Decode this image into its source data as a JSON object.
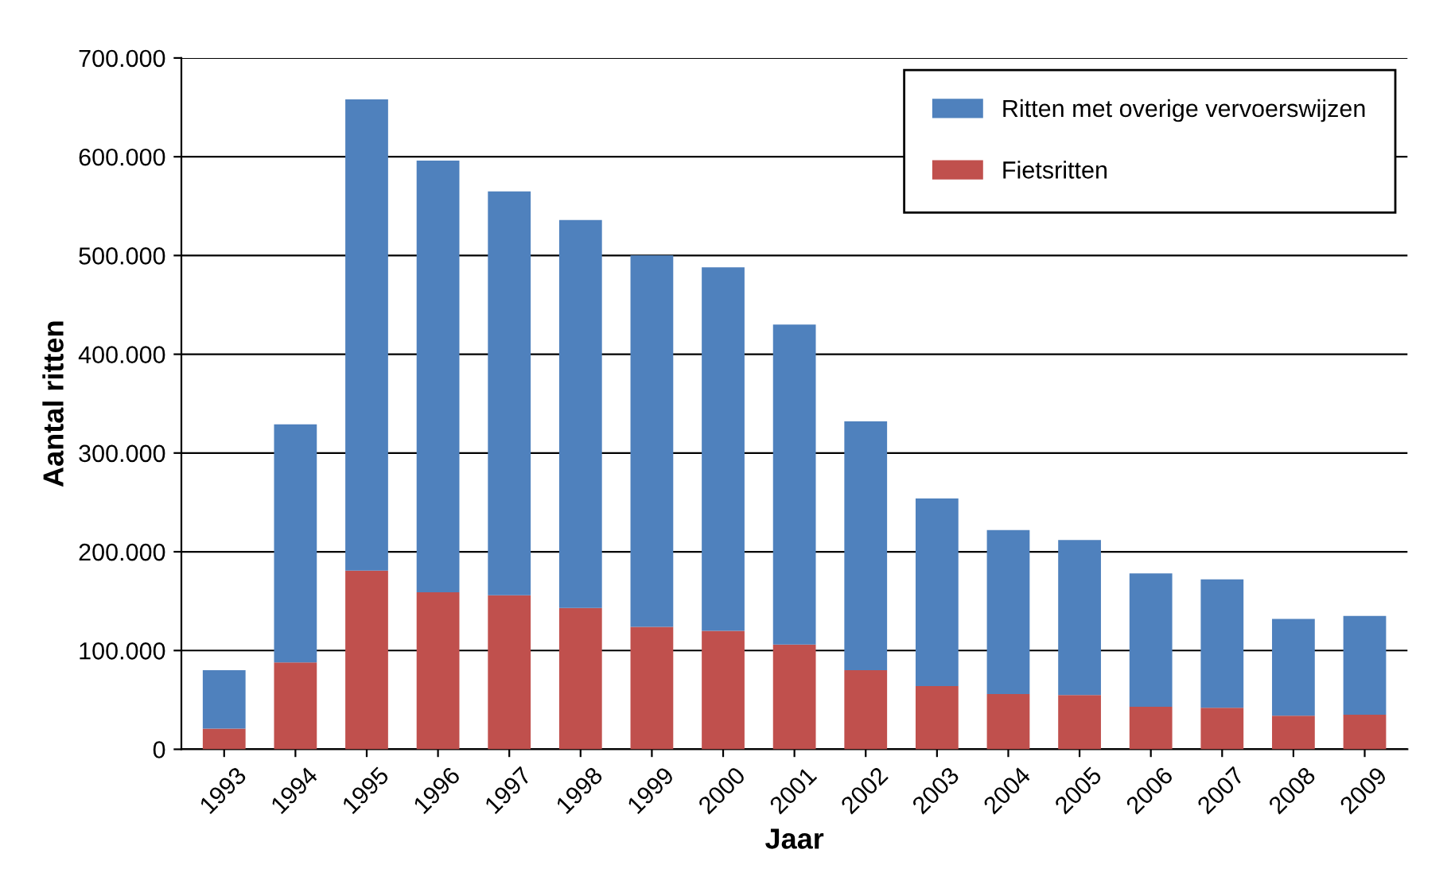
{
  "chart_data": {
    "type": "bar",
    "stacked": true,
    "xlabel": "Jaar",
    "ylabel": "Aantal ritten",
    "categories": [
      "1993",
      "1994",
      "1995",
      "1996",
      "1997",
      "1998",
      "1999",
      "2000",
      "2001",
      "2002",
      "2003",
      "2004",
      "2005",
      "2006",
      "2007",
      "2008",
      "2009"
    ],
    "series": [
      {
        "name": "Fietsritten",
        "color": "#c0504d",
        "values": [
          21000,
          88000,
          181000,
          159000,
          156000,
          143000,
          124000,
          120000,
          106000,
          80000,
          64000,
          56000,
          55000,
          43000,
          42000,
          34000,
          35000
        ]
      },
      {
        "name": "Ritten met overige vervoerswijzen",
        "color": "#4f81bd",
        "values": [
          59000,
          241000,
          477000,
          437000,
          409000,
          393000,
          376000,
          368000,
          324000,
          252000,
          190000,
          166000,
          157000,
          135000,
          130000,
          98000,
          100000
        ]
      }
    ],
    "ylim": [
      0,
      700000
    ],
    "yticks": [
      0,
      {
        "value": 100000,
        "label": "100.000"
      },
      {
        "value": 200000,
        "label": "200.000"
      },
      {
        "value": 300000,
        "label": "300.000"
      },
      {
        "value": 400000,
        "label": "400.000"
      },
      {
        "value": 500000,
        "label": "500.000"
      },
      {
        "value": 600000,
        "label": "600.000"
      },
      {
        "value": 700000,
        "label": "700.000"
      }
    ],
    "grid": "y",
    "legend": "top right"
  }
}
